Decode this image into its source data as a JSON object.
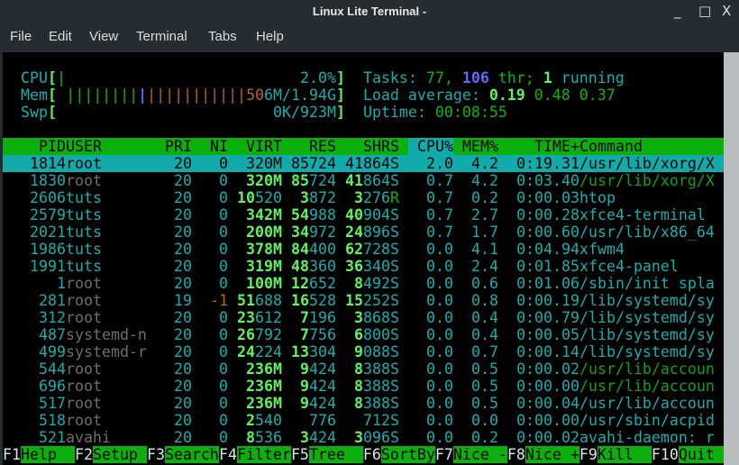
{
  "window": {
    "title": "Linux Lite Terminal -",
    "minimize": "_",
    "maximize": "□",
    "close": "X"
  },
  "menu": [
    "File",
    "Edit",
    "View",
    "Terminal",
    "Tabs",
    "Help"
  ],
  "meters": {
    "cpu": {
      "label": "CPU",
      "value": "2.0%",
      "percent": 2.0
    },
    "mem": {
      "label": "Mem",
      "value": "506M/1.94G",
      "used_M": 506,
      "total": "1.94G"
    },
    "swp": {
      "label": "Swp",
      "value": "0K/923M"
    }
  },
  "summary": {
    "tasks_label": "Tasks:",
    "tasks": "77,",
    "threads": "106",
    "thr_label": "thr;",
    "running": "1",
    "running_label": "running",
    "load_label": "Load average:",
    "load1": "0.19",
    "load5": "0.48",
    "load15": "0.37",
    "uptime_label": "Uptime:",
    "uptime": "00:08:55"
  },
  "columns": [
    "PID",
    "USER",
    "PRI",
    "NI",
    "VIRT",
    "RES",
    "SHR",
    "S",
    "CPU%",
    "MEM%",
    "TIME+",
    "Command"
  ],
  "sort_column": "CPU%",
  "processes": [
    {
      "pid": "1814",
      "user": "root",
      "pri": "20",
      "ni": "0",
      "virt": "320M",
      "res": "85724",
      "shr": "41864",
      "s": "S",
      "cpu": "2.0",
      "mem": "4.2",
      "time": "0:19.31",
      "cmd": "/usr/lib/xorg/X",
      "selected": true
    },
    {
      "pid": "1830",
      "user": "root",
      "pri": "20",
      "ni": "0",
      "virt": "320M",
      "res": "85724",
      "shr": "41864",
      "s": "S",
      "cpu": "0.7",
      "mem": "4.2",
      "time": "0:03.40",
      "cmd": "/usr/lib/xorg/X",
      "thread": true
    },
    {
      "pid": "2606",
      "user": "tuts",
      "pri": "20",
      "ni": "0",
      "virt": "10520",
      "res": "3872",
      "shr": "3276",
      "s": "R",
      "cpu": "0.7",
      "mem": "0.2",
      "time": "0:00.03",
      "cmd": "htop"
    },
    {
      "pid": "2579",
      "user": "tuts",
      "pri": "20",
      "ni": "0",
      "virt": "342M",
      "res": "54988",
      "shr": "40904",
      "s": "S",
      "cpu": "0.7",
      "mem": "2.7",
      "time": "0:00.28",
      "cmd": "xfce4-terminal"
    },
    {
      "pid": "2021",
      "user": "tuts",
      "pri": "20",
      "ni": "0",
      "virt": "200M",
      "res": "34972",
      "shr": "24896",
      "s": "S",
      "cpu": "0.7",
      "mem": "1.7",
      "time": "0:00.60",
      "cmd": "/usr/lib/x86_64"
    },
    {
      "pid": "1986",
      "user": "tuts",
      "pri": "20",
      "ni": "0",
      "virt": "378M",
      "res": "84400",
      "shr": "62728",
      "s": "S",
      "cpu": "0.0",
      "mem": "4.1",
      "time": "0:04.94",
      "cmd": "xfwm4"
    },
    {
      "pid": "1991",
      "user": "tuts",
      "pri": "20",
      "ni": "0",
      "virt": "319M",
      "res": "48360",
      "shr": "36340",
      "s": "S",
      "cpu": "0.0",
      "mem": "2.4",
      "time": "0:01.85",
      "cmd": "xfce4-panel"
    },
    {
      "pid": "1",
      "user": "root",
      "pri": "20",
      "ni": "0",
      "virt": "100M",
      "res": "12652",
      "shr": "8492",
      "s": "S",
      "cpu": "0.0",
      "mem": "0.6",
      "time": "0:01.06",
      "cmd": "/sbin/init spla"
    },
    {
      "pid": "281",
      "user": "root",
      "pri": "19",
      "ni": "-1",
      "virt": "51688",
      "res": "16528",
      "shr": "15252",
      "s": "S",
      "cpu": "0.0",
      "mem": "0.8",
      "time": "0:00.19",
      "cmd": "/lib/systemd/sy"
    },
    {
      "pid": "312",
      "user": "root",
      "pri": "20",
      "ni": "0",
      "virt": "23612",
      "res": "7196",
      "shr": "3868",
      "s": "S",
      "cpu": "0.0",
      "mem": "0.4",
      "time": "0:00.79",
      "cmd": "/lib/systemd/sy"
    },
    {
      "pid": "487",
      "user": "systemd-n",
      "pri": "20",
      "ni": "0",
      "virt": "26792",
      "res": "7756",
      "shr": "6800",
      "s": "S",
      "cpu": "0.0",
      "mem": "0.4",
      "time": "0:00.05",
      "cmd": "/lib/systemd/sy"
    },
    {
      "pid": "499",
      "user": "systemd-r",
      "pri": "20",
      "ni": "0",
      "virt": "24224",
      "res": "13304",
      "shr": "9088",
      "s": "S",
      "cpu": "0.0",
      "mem": "0.7",
      "time": "0:00.14",
      "cmd": "/lib/systemd/sy"
    },
    {
      "pid": "544",
      "user": "root",
      "pri": "20",
      "ni": "0",
      "virt": "236M",
      "res": "9424",
      "shr": "8388",
      "s": "S",
      "cpu": "0.0",
      "mem": "0.5",
      "time": "0:00.02",
      "cmd": "/usr/lib/accoun",
      "thread": true
    },
    {
      "pid": "696",
      "user": "root",
      "pri": "20",
      "ni": "0",
      "virt": "236M",
      "res": "9424",
      "shr": "8388",
      "s": "S",
      "cpu": "0.0",
      "mem": "0.5",
      "time": "0:00.00",
      "cmd": "/usr/lib/accoun",
      "thread": true
    },
    {
      "pid": "517",
      "user": "root",
      "pri": "20",
      "ni": "0",
      "virt": "236M",
      "res": "9424",
      "shr": "8388",
      "s": "S",
      "cpu": "0.0",
      "mem": "0.5",
      "time": "0:00.04",
      "cmd": "/usr/lib/accoun"
    },
    {
      "pid": "518",
      "user": "root",
      "pri": "20",
      "ni": "0",
      "virt": "2540",
      "res": "776",
      "shr": "712",
      "s": "S",
      "cpu": "0.0",
      "mem": "0.0",
      "time": "0:00.00",
      "cmd": "/usr/sbin/acpid"
    },
    {
      "pid": "521",
      "user": "avahi",
      "pri": "20",
      "ni": "0",
      "virt": "8536",
      "res": "3424",
      "shr": "3096",
      "s": "S",
      "cpu": "0.0",
      "mem": "0.2",
      "time": "0:00.02",
      "cmd": "avahi-daemon: r"
    }
  ],
  "function_keys": [
    {
      "key": "F1",
      "label": "Help"
    },
    {
      "key": "F2",
      "label": "Setup"
    },
    {
      "key": "F3",
      "label": "Search"
    },
    {
      "key": "F4",
      "label": "Filter"
    },
    {
      "key": "F5",
      "label": "Tree"
    },
    {
      "key": "F6",
      "label": "SortBy"
    },
    {
      "key": "F7",
      "label": "Nice -"
    },
    {
      "key": "F8",
      "label": "Nice +"
    },
    {
      "key": "F9",
      "label": "Kill"
    },
    {
      "key": "F10",
      "label": "Quit"
    }
  ],
  "current_user": "tuts",
  "colors": {
    "header_bg": "#0cb00c",
    "selection_bg": "#11abab",
    "text": "#17aeae",
    "highlight": "#5ff35f"
  }
}
